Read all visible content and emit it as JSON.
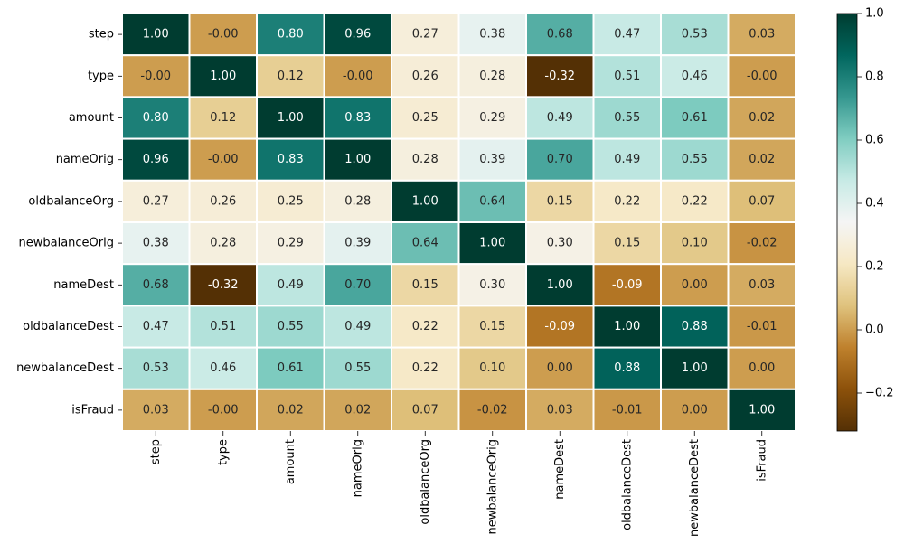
{
  "chart_data": {
    "type": "heatmap",
    "title": "",
    "xlabel": "",
    "ylabel": "",
    "variables": [
      "step",
      "type",
      "amount",
      "nameOrig",
      "oldbalanceOrg",
      "newbalanceOrig",
      "nameDest",
      "oldbalanceDest",
      "newbalanceDest",
      "isFraud"
    ],
    "values": [
      [
        "1.00",
        "-0.00",
        "0.80",
        "0.96",
        "0.27",
        "0.38",
        "0.68",
        "0.47",
        "0.53",
        "0.03"
      ],
      [
        "-0.00",
        "1.00",
        "0.12",
        "-0.00",
        "0.26",
        "0.28",
        "-0.32",
        "0.51",
        "0.46",
        "-0.00"
      ],
      [
        "0.80",
        "0.12",
        "1.00",
        "0.83",
        "0.25",
        "0.29",
        "0.49",
        "0.55",
        "0.61",
        "0.02"
      ],
      [
        "0.96",
        "-0.00",
        "0.83",
        "1.00",
        "0.28",
        "0.39",
        "0.70",
        "0.49",
        "0.55",
        "0.02"
      ],
      [
        "0.27",
        "0.26",
        "0.25",
        "0.28",
        "1.00",
        "0.64",
        "0.15",
        "0.22",
        "0.22",
        "0.07"
      ],
      [
        "0.38",
        "0.28",
        "0.29",
        "0.39",
        "0.64",
        "1.00",
        "0.30",
        "0.15",
        "0.10",
        "-0.02"
      ],
      [
        "0.68",
        "-0.32",
        "0.49",
        "0.70",
        "0.15",
        "0.30",
        "1.00",
        "-0.09",
        "0.00",
        "0.03"
      ],
      [
        "0.47",
        "0.51",
        "0.55",
        "0.49",
        "0.22",
        "0.15",
        "-0.09",
        "1.00",
        "0.88",
        "-0.01"
      ],
      [
        "0.53",
        "0.46",
        "0.61",
        "0.55",
        "0.22",
        "0.10",
        "0.00",
        "0.88",
        "1.00",
        "0.00"
      ],
      [
        "0.03",
        "-0.00",
        "0.02",
        "0.02",
        "0.07",
        "-0.02",
        "0.03",
        "-0.01",
        "0.00",
        "1.00"
      ]
    ],
    "colormap": "BrBG",
    "vmin": -0.32,
    "vmax": 1.0,
    "colorbar": {
      "ticks": [
        1.0,
        0.8,
        0.6,
        0.4,
        0.2,
        0.0,
        -0.2
      ],
      "tick_labels": [
        "1.0",
        "0.8",
        "0.6",
        "0.4",
        "0.2",
        "0.0",
        "−0.2"
      ]
    },
    "annotations": true,
    "cell_border_color": "#ffffff"
  }
}
